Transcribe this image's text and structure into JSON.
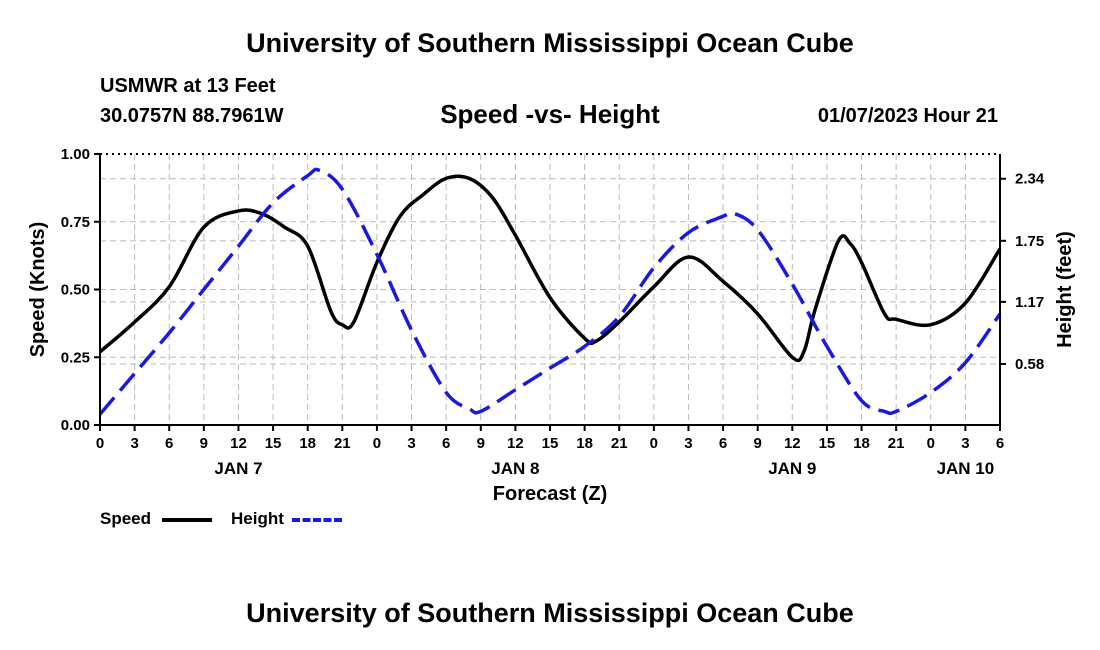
{
  "header": {
    "title_top": "University of Southern Mississippi Ocean Cube",
    "title_bottom": "University of Southern Mississippi Ocean Cube",
    "station": "USMWR at 13 Feet",
    "coords": "30.0757N  88.7961W",
    "subtitle": "Speed -vs- Height",
    "datetime": "01/07/2023 Hour 21"
  },
  "legend": {
    "speed_label": "Speed",
    "height_label": "Height"
  },
  "colors": {
    "speed": "#000000",
    "height": "#1a1adc",
    "grid": "#bbbbbb"
  },
  "chart_data": {
    "type": "line",
    "xlabel": "Forecast (Z)",
    "ylabel_left": "Speed (Knots)",
    "ylabel_right": "Height (feet)",
    "x_range_hours": [
      0,
      78
    ],
    "x_ticks": [
      {
        "h": 0,
        "label": "0"
      },
      {
        "h": 3,
        "label": "3"
      },
      {
        "h": 6,
        "label": "6"
      },
      {
        "h": 9,
        "label": "9"
      },
      {
        "h": 12,
        "label": "12"
      },
      {
        "h": 15,
        "label": "15"
      },
      {
        "h": 18,
        "label": "18"
      },
      {
        "h": 21,
        "label": "21"
      },
      {
        "h": 24,
        "label": "0"
      },
      {
        "h": 27,
        "label": "3"
      },
      {
        "h": 30,
        "label": "6"
      },
      {
        "h": 33,
        "label": "9"
      },
      {
        "h": 36,
        "label": "12"
      },
      {
        "h": 39,
        "label": "15"
      },
      {
        "h": 42,
        "label": "18"
      },
      {
        "h": 45,
        "label": "21"
      },
      {
        "h": 48,
        "label": "0"
      },
      {
        "h": 51,
        "label": "3"
      },
      {
        "h": 54,
        "label": "6"
      },
      {
        "h": 57,
        "label": "9"
      },
      {
        "h": 60,
        "label": "12"
      },
      {
        "h": 63,
        "label": "15"
      },
      {
        "h": 66,
        "label": "18"
      },
      {
        "h": 69,
        "label": "21"
      },
      {
        "h": 72,
        "label": "0"
      },
      {
        "h": 75,
        "label": "3"
      },
      {
        "h": 78,
        "label": "6"
      }
    ],
    "day_labels": [
      {
        "h": 12,
        "label": "JAN 7"
      },
      {
        "h": 36,
        "label": "JAN 8"
      },
      {
        "h": 60,
        "label": "JAN 9"
      },
      {
        "h": 75,
        "label": "JAN 10"
      }
    ],
    "left_axis": {
      "min": 0,
      "max": 1,
      "ticks": [
        0,
        0.25,
        0.5,
        0.75,
        1
      ],
      "tick_labels": [
        "0.00",
        "0.25",
        "0.50",
        "0.75",
        "1.00"
      ]
    },
    "right_axis": {
      "min": 0,
      "max": 2.575,
      "ticks": [
        0.58,
        1.17,
        1.75,
        2.34
      ],
      "tick_labels": [
        "0.58",
        "1.17",
        "1.75",
        "2.34"
      ]
    },
    "series": [
      {
        "name": "Speed",
        "axis": "left",
        "x": [
          0,
          3,
          6,
          9,
          12,
          14,
          16,
          18,
          20,
          21,
          22,
          24,
          26,
          28,
          30,
          32,
          34,
          36,
          39,
          42,
          43,
          45,
          48,
          51,
          54,
          57,
          60,
          61,
          62,
          64,
          65,
          66,
          68,
          69,
          72,
          75,
          78
        ],
        "y": [
          0.27,
          0.38,
          0.51,
          0.73,
          0.79,
          0.78,
          0.73,
          0.66,
          0.42,
          0.37,
          0.38,
          0.6,
          0.77,
          0.85,
          0.91,
          0.91,
          0.84,
          0.7,
          0.47,
          0.32,
          0.31,
          0.38,
          0.51,
          0.62,
          0.53,
          0.41,
          0.25,
          0.27,
          0.43,
          0.68,
          0.67,
          0.6,
          0.41,
          0.39,
          0.37,
          0.45,
          0.65
        ]
      },
      {
        "name": "Height",
        "axis": "left",
        "x": [
          0,
          3,
          6,
          9,
          12,
          15,
          18,
          19,
          21,
          24,
          27,
          30,
          32,
          33,
          36,
          39,
          42,
          45,
          48,
          51,
          54,
          55,
          57,
          60,
          63,
          66,
          68,
          69,
          72,
          75,
          78
        ],
        "y": [
          0.04,
          0.19,
          0.34,
          0.5,
          0.66,
          0.82,
          0.92,
          0.94,
          0.87,
          0.63,
          0.35,
          0.12,
          0.06,
          0.05,
          0.13,
          0.21,
          0.29,
          0.4,
          0.58,
          0.71,
          0.77,
          0.78,
          0.72,
          0.52,
          0.29,
          0.09,
          0.05,
          0.05,
          0.12,
          0.23,
          0.41
        ]
      }
    ]
  }
}
